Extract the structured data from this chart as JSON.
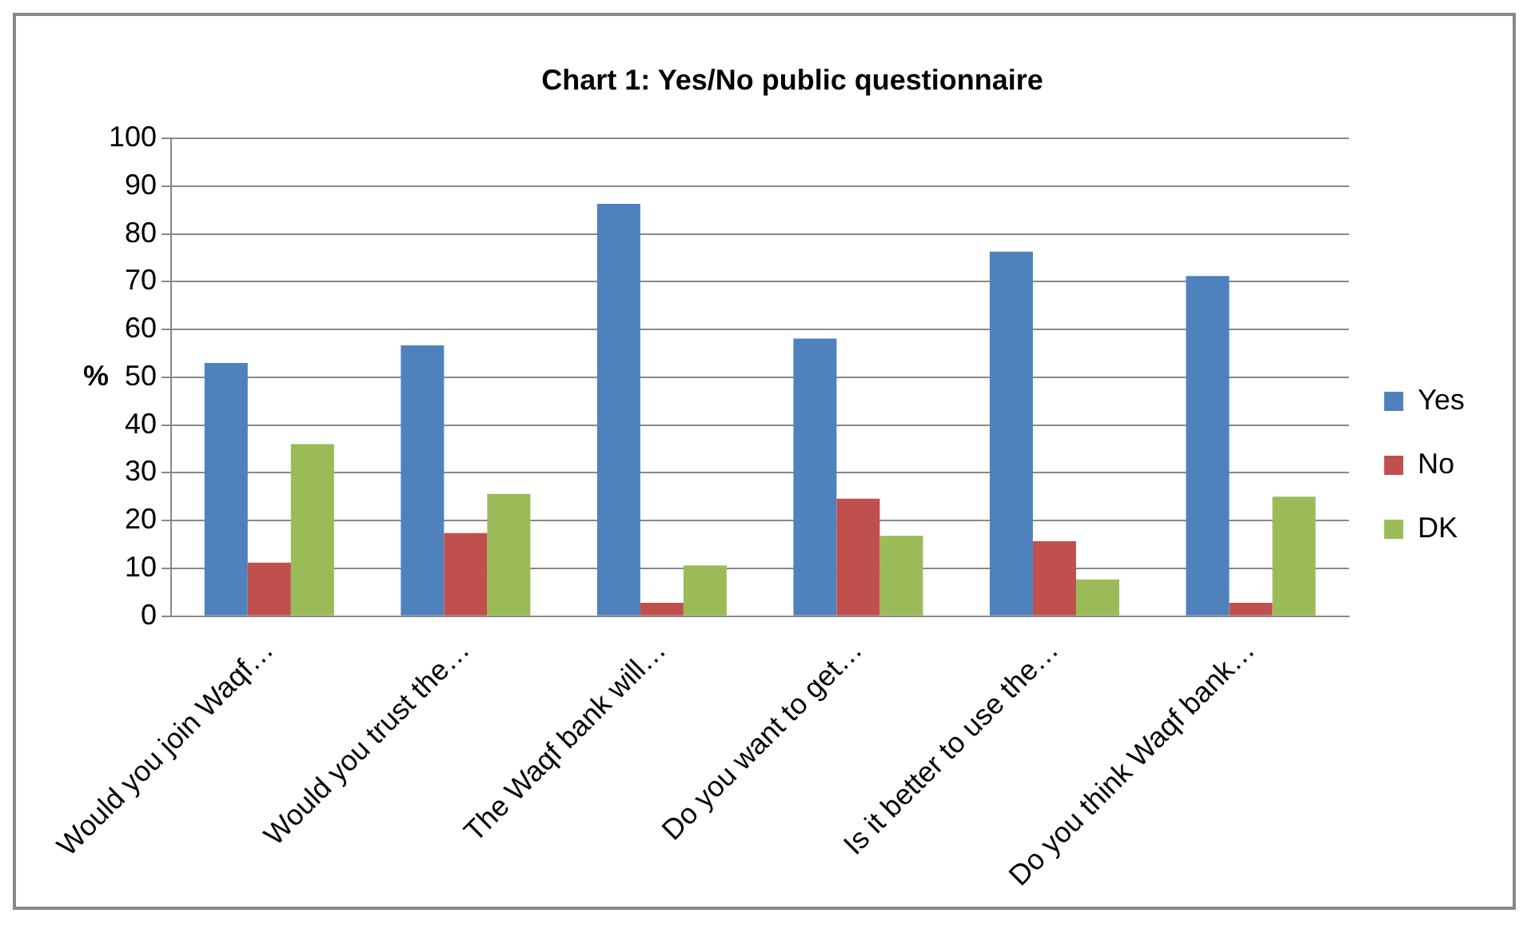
{
  "chart_data": {
    "type": "bar",
    "title": "Chart 1: Yes/No public questionnaire",
    "ylabel": "%",
    "categories": [
      "Would you join Waqf…",
      "Would you trust the…",
      "The Waqf bank will…",
      "Do you want to get…",
      "Is it better to use the…",
      "Do you think Waqf bank…"
    ],
    "series": [
      {
        "name": "Yes",
        "color": "#4f81bd",
        "values": [
          53,
          56.7,
          86.3,
          58.1,
          76.3,
          71.2
        ]
      },
      {
        "name": "No",
        "color": "#c0504d",
        "values": [
          11.2,
          17.4,
          2.8,
          24.6,
          15.7,
          2.8
        ]
      },
      {
        "name": "DK",
        "color": "#9bbb59",
        "values": [
          36,
          25.6,
          10.6,
          16.8,
          7.7,
          25
        ]
      }
    ],
    "ylim": [
      0,
      100
    ],
    "yticks": [
      0,
      10,
      20,
      30,
      40,
      50,
      60,
      70,
      80,
      90,
      100
    ],
    "grid": "y",
    "legend": "right"
  }
}
